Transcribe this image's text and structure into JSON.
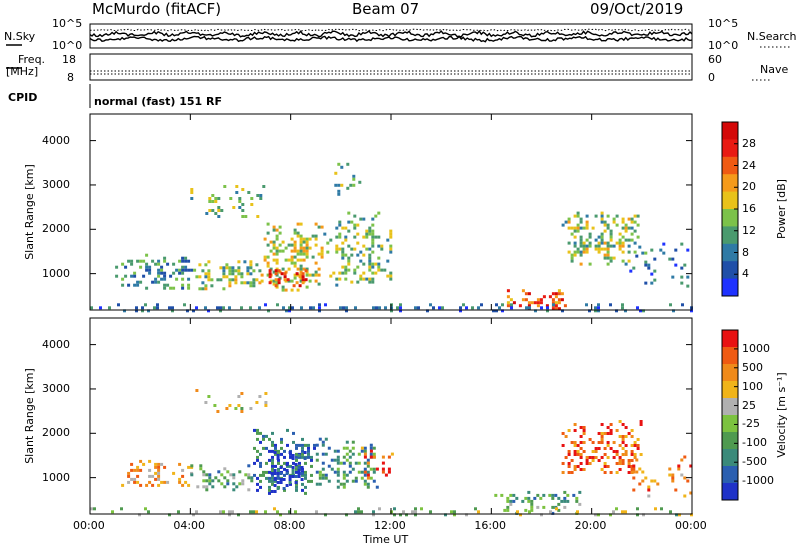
{
  "header": {
    "station": "McMurdo (fitACF)",
    "beam": "Beam 07",
    "date": "09/Oct/2019"
  },
  "top_panels": {
    "nsky_label": "N.Sky",
    "nsearch_label": "N.Search",
    "freq_label_line1": "Freq.",
    "freq_label_line2": "[MHz]",
    "nave_label": "Nave",
    "cpid_label": "CPID",
    "cpid_value": "normal (fast) 151 RF",
    "noise_ticks_left": [
      "10^5",
      "10^0"
    ],
    "noise_ticks_right": [
      "10^5",
      "10^0"
    ],
    "freq_ticks": [
      "18",
      "8"
    ],
    "nave_ticks": [
      "60",
      "0"
    ]
  },
  "chart_data": [
    {
      "type": "heatmap",
      "name": "power",
      "ylabel": "Slant Range [km]",
      "xlabel": "",
      "xlim": [
        0,
        24
      ],
      "ylim": [
        180,
        4600
      ],
      "xticks": [
        "00:00",
        "04:00",
        "08:00",
        "12:00",
        "16:00",
        "20:00",
        "00:00"
      ],
      "yticks": [
        1000,
        2000,
        3000,
        4000
      ],
      "colorbar": {
        "label": "Power [dB]",
        "ticks": [
          "4",
          "8",
          "12",
          "16",
          "20",
          "24",
          "28"
        ],
        "colors": [
          "#1f32ff",
          "#1f4fa8",
          "#2f7aa5",
          "#4a9a6e",
          "#7cc24a",
          "#e8c21a",
          "#f59a1a",
          "#ef5a12",
          "#e81a12",
          "#d40808"
        ]
      },
      "blobs": [
        {
          "t0": 1.0,
          "t1": 4.2,
          "r0": 650,
          "r1": 1450,
          "level": 0.3,
          "dens": 0.5
        },
        {
          "t0": 4.2,
          "t1": 6.8,
          "r0": 680,
          "r1": 1300,
          "level": 0.45,
          "dens": 0.65
        },
        {
          "t0": 6.8,
          "t1": 9.3,
          "r0": 650,
          "r1": 2150,
          "level": 0.5,
          "dens": 0.6
        },
        {
          "t0": 7.0,
          "t1": 8.8,
          "r0": 700,
          "r1": 1100,
          "level": 0.85,
          "dens": 0.55
        },
        {
          "t0": 9.3,
          "t1": 12.0,
          "r0": 750,
          "r1": 2400,
          "level": 0.4,
          "dens": 0.5
        },
        {
          "t0": 4.0,
          "t1": 7.0,
          "r0": 2300,
          "r1": 3000,
          "level": 0.4,
          "dens": 0.25
        },
        {
          "t0": 9.5,
          "t1": 10.8,
          "r0": 2700,
          "r1": 3500,
          "level": 0.35,
          "dens": 0.2
        },
        {
          "t0": 16.5,
          "t1": 19.0,
          "r0": 200,
          "r1": 650,
          "level": 0.75,
          "dens": 0.6
        },
        {
          "t0": 18.8,
          "t1": 21.8,
          "r0": 1200,
          "r1": 2400,
          "level": 0.45,
          "dens": 0.55
        },
        {
          "t0": 21.5,
          "t1": 24.0,
          "r0": 700,
          "r1": 1700,
          "level": 0.25,
          "dens": 0.2
        },
        {
          "t0": 0.0,
          "t1": 24.0,
          "r0": 180,
          "r1": 330,
          "level": 0.2,
          "dens": 0.4
        }
      ]
    },
    {
      "type": "heatmap",
      "name": "velocity",
      "ylabel": "Slant Range [km]",
      "xlabel": "Time UT",
      "xlim": [
        0,
        24
      ],
      "ylim": [
        180,
        4600
      ],
      "xticks": [
        "00:00",
        "04:00",
        "08:00",
        "12:00",
        "16:00",
        "20:00",
        "00:00"
      ],
      "yticks": [
        1000,
        2000,
        3000,
        4000
      ],
      "colorbar": {
        "label": "Velocity [m s⁻¹]",
        "ticks": [
          "1000",
          "500",
          "100",
          "25",
          "-25",
          "-100",
          "-500",
          "-1000"
        ],
        "colors": [
          "#1f32c8",
          "#2a5fb0",
          "#3a8a7a",
          "#4f9a50",
          "#7cc240",
          "#b0b0b0",
          "#f0b41a",
          "#f08a1a",
          "#ef5a12",
          "#e81212"
        ]
      },
      "blobs": [
        {
          "t0": 1.0,
          "t1": 4.0,
          "r0": 800,
          "r1": 1400,
          "level": 0.7,
          "dens": 0.4
        },
        {
          "t0": 4.0,
          "t1": 6.5,
          "r0": 750,
          "r1": 1300,
          "level": 0.35,
          "dens": 0.55
        },
        {
          "t0": 6.5,
          "t1": 9.0,
          "r0": 650,
          "r1": 2100,
          "level": 0.2,
          "dens": 0.6
        },
        {
          "t0": 7.2,
          "t1": 8.6,
          "r0": 700,
          "r1": 1600,
          "level": 0.05,
          "dens": 0.45
        },
        {
          "t0": 9.0,
          "t1": 11.5,
          "r0": 800,
          "r1": 1900,
          "level": 0.3,
          "dens": 0.5
        },
        {
          "t0": 10.8,
          "t1": 12.0,
          "r0": 900,
          "r1": 1700,
          "level": 0.8,
          "dens": 0.35
        },
        {
          "t0": 4.2,
          "t1": 7.0,
          "r0": 2500,
          "r1": 3000,
          "level": 0.55,
          "dens": 0.2
        },
        {
          "t0": 16.0,
          "t1": 19.5,
          "r0": 200,
          "r1": 700,
          "level": 0.35,
          "dens": 0.45
        },
        {
          "t0": 18.8,
          "t1": 22.0,
          "r0": 1100,
          "r1": 2300,
          "level": 0.85,
          "dens": 0.55
        },
        {
          "t0": 21.5,
          "t1": 24.0,
          "r0": 600,
          "r1": 1500,
          "level": 0.75,
          "dens": 0.2
        },
        {
          "t0": 0.0,
          "t1": 24.0,
          "r0": 180,
          "r1": 330,
          "level": 0.45,
          "dens": 0.25
        }
      ]
    }
  ]
}
